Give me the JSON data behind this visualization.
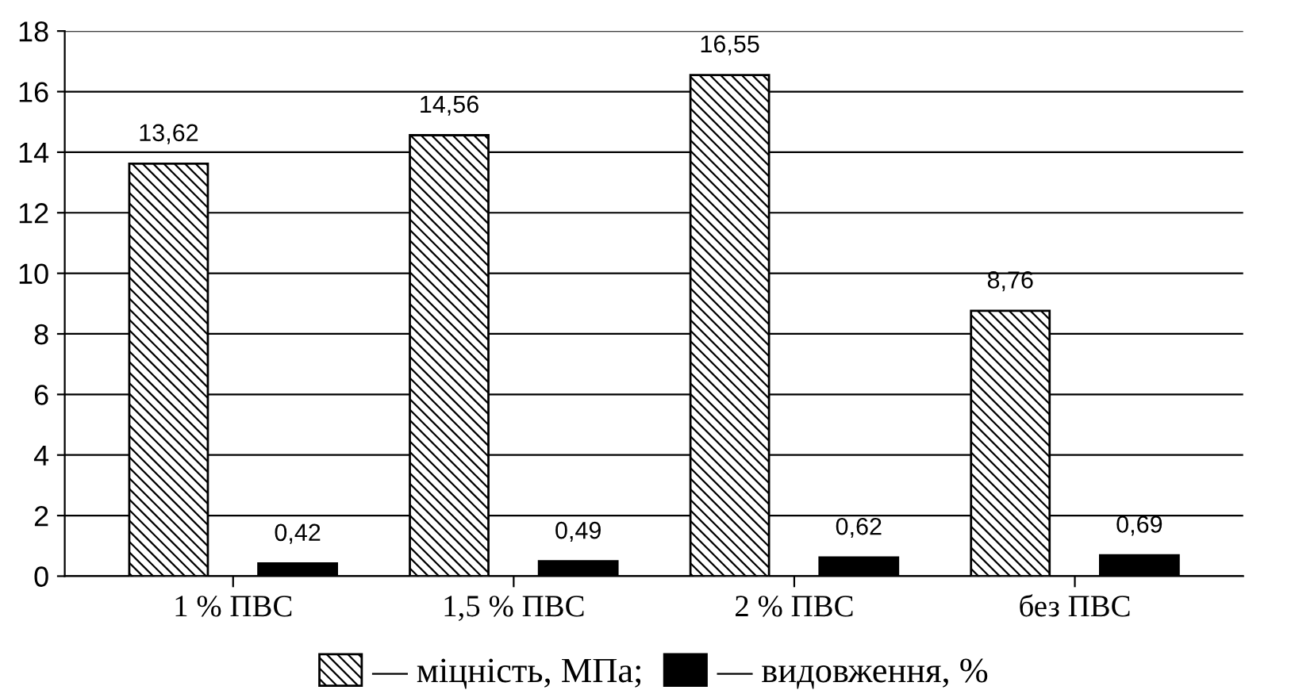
{
  "chart_data": {
    "type": "bar",
    "categories": [
      "1 % ПВС",
      "1,5 % ПВС",
      "2 % ПВС",
      "без ПВС"
    ],
    "series": [
      {
        "name": "— міцність, МПа;",
        "color": "#000000",
        "values": [
          13.62,
          14.56,
          16.55,
          8.76
        ],
        "value_labels": [
          "13,62",
          "14,56",
          "16,55",
          "8,76"
        ]
      },
      {
        "name": "— видовження, %",
        "color": "#000000",
        "values": [
          0.42,
          0.49,
          0.62,
          0.69
        ],
        "value_labels": [
          "0,42",
          "0,49",
          "0,62",
          "0,69"
        ]
      }
    ],
    "ylim": [
      0,
      18
    ],
    "yticks": [
      0,
      2,
      4,
      6,
      8,
      10,
      12,
      14,
      16,
      18
    ],
    "grid": "y",
    "legend": "bottom"
  }
}
